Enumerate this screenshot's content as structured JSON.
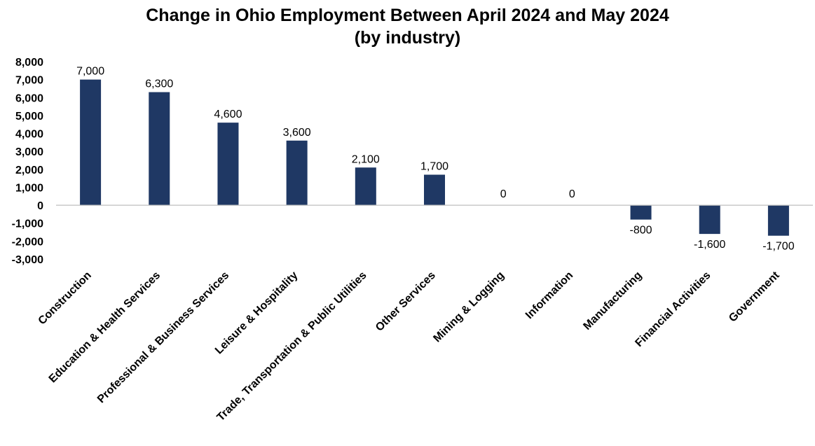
{
  "chart_data": {
    "type": "bar",
    "title": "Change in Ohio Employment Between April 2024 and May 2024",
    "subtitle": "(by industry)",
    "xlabel": "",
    "ylabel": "",
    "ylim": [
      -3000,
      8000
    ],
    "yticks": [
      8000,
      7000,
      6000,
      5000,
      4000,
      3000,
      2000,
      1000,
      0,
      -1000,
      -2000,
      -3000
    ],
    "ytick_labels": [
      "8,000",
      "7,000",
      "6,000",
      "5,000",
      "4,000",
      "3,000",
      "2,000",
      "1,000",
      "0",
      "-1,000",
      "-2,000",
      "-3,000"
    ],
    "categories": [
      "Construction",
      "Education & Health Services",
      "Professional & Business Services",
      "Leisure & Hospitality",
      "Trade, Transportation & Public Utilities",
      "Other Services",
      "Mining & Logging",
      "Information",
      "Manufacturing",
      "Financial Activities",
      "Government"
    ],
    "values": [
      7000,
      6300,
      4600,
      3600,
      2100,
      1700,
      0,
      0,
      -800,
      -1600,
      -1700
    ],
    "data_labels": [
      "7,000",
      "6,300",
      "4,600",
      "3,600",
      "2,100",
      "1,700",
      "0",
      "0",
      "-800",
      "-1,600",
      "-1,700"
    ],
    "bar_color": "#1f3864",
    "grid": false,
    "legend": "none"
  }
}
